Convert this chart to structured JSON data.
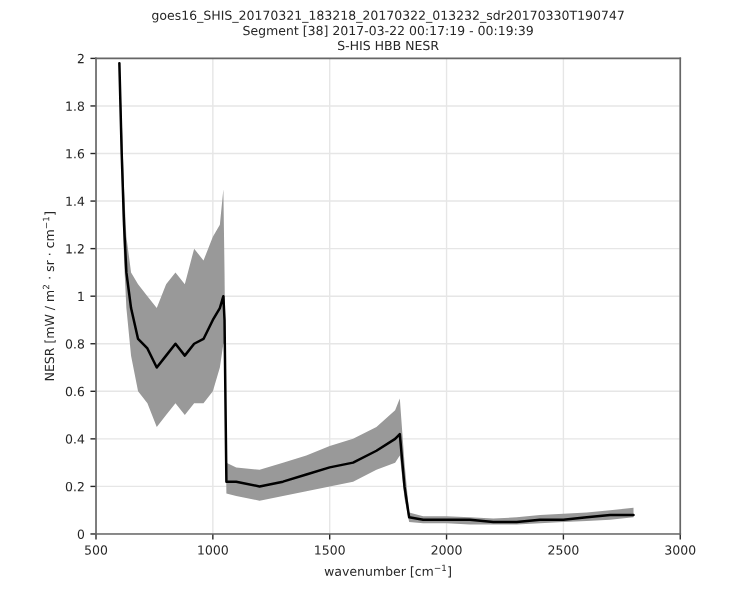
{
  "chart_data": {
    "type": "line",
    "title": "goes16_SHIS_20170321_183218_20170322_013232_sdr20170330T190747\nSegment [38] 2017-03-22 00:17:19 - 00:19:39\nS-HIS HBB NESR",
    "xlabel": "wavenumber [cm$^{−1}$]",
    "ylabel": "NESR [mW / m$^{2}$ · sr · cm$^{−1}$]",
    "x": [
      600,
      610,
      620,
      630,
      650,
      680,
      720,
      760,
      800,
      840,
      880,
      920,
      960,
      1000,
      1030,
      1045,
      1050,
      1058,
      1100,
      1200,
      1300,
      1400,
      1500,
      1600,
      1700,
      1780,
      1800,
      1820,
      1840,
      1900,
      2000,
      2100,
      2200,
      2300,
      2400,
      2500,
      2600,
      2700,
      2800
    ],
    "series": [
      {
        "color": "#000000",
        "values": [
          1.98,
          1.6,
          1.3,
          1.1,
          0.95,
          0.82,
          0.78,
          0.7,
          0.75,
          0.8,
          0.75,
          0.8,
          0.82,
          0.9,
          0.95,
          1.0,
          0.9,
          0.22,
          0.22,
          0.2,
          0.22,
          0.25,
          0.28,
          0.3,
          0.35,
          0.4,
          0.42,
          0.2,
          0.07,
          0.06,
          0.06,
          0.06,
          0.05,
          0.05,
          0.06,
          0.06,
          0.07,
          0.08,
          0.08
        ],
        "lower": [
          1.9,
          1.5,
          1.15,
          0.95,
          0.75,
          0.6,
          0.55,
          0.45,
          0.5,
          0.55,
          0.5,
          0.55,
          0.55,
          0.6,
          0.7,
          0.8,
          0.8,
          0.17,
          0.16,
          0.14,
          0.16,
          0.18,
          0.2,
          0.22,
          0.27,
          0.3,
          0.33,
          0.15,
          0.05,
          0.045,
          0.045,
          0.04,
          0.04,
          0.04,
          0.045,
          0.05,
          0.055,
          0.06,
          0.07
        ],
        "upper": [
          1.98,
          1.75,
          1.45,
          1.25,
          1.1,
          1.05,
          1.0,
          0.95,
          1.05,
          1.1,
          1.05,
          1.2,
          1.15,
          1.25,
          1.3,
          1.45,
          1.1,
          0.3,
          0.28,
          0.27,
          0.3,
          0.33,
          0.37,
          0.4,
          0.45,
          0.52,
          0.57,
          0.3,
          0.09,
          0.075,
          0.075,
          0.07,
          0.065,
          0.07,
          0.08,
          0.085,
          0.09,
          0.1,
          0.11
        ]
      }
    ],
    "xlim": [
      500,
      3000
    ],
    "ylim": [
      0,
      2
    ],
    "xticks": [
      500,
      1000,
      1500,
      2000,
      2500,
      3000
    ],
    "yticks": [
      0,
      0.2,
      0.4,
      0.6,
      0.8,
      1,
      1.2,
      1.4,
      1.6,
      1.8,
      2
    ],
    "grid": true
  }
}
